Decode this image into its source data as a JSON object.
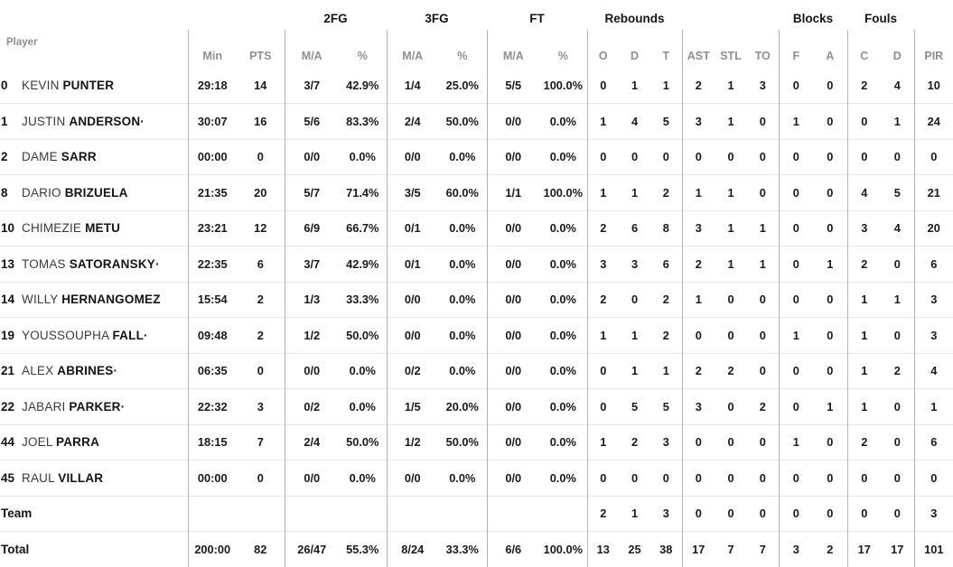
{
  "starter_marker": "·",
  "groups": {
    "fg2": "2FG",
    "fg3": "3FG",
    "ft": "FT",
    "rebounds": "Rebounds",
    "blocks": "Blocks",
    "fouls": "Fouls"
  },
  "header": {
    "player": "Player",
    "min": "Min",
    "pts": "PTS",
    "ma": "M/A",
    "pct": "%",
    "reb_o": "O",
    "reb_d": "D",
    "reb_t": "T",
    "ast": "AST",
    "stl": "STL",
    "to": "TO",
    "blk_f": "F",
    "blk_a": "A",
    "foul_c": "C",
    "foul_d": "D",
    "pir": "PIR"
  },
  "rows": [
    {
      "type": "player",
      "num": "0",
      "first": "KEVIN",
      "last": "PUNTER",
      "starter": false,
      "min": "29:18",
      "pts": "14",
      "fg2ma": "3/7",
      "fg2pct": "42.9%",
      "fg3ma": "1/4",
      "fg3pct": "25.0%",
      "ftma": "5/5",
      "ftpct": "100.0%",
      "ro": "0",
      "rd": "1",
      "rt": "1",
      "ast": "2",
      "stl": "1",
      "to": "3",
      "bf": "0",
      "ba": "0",
      "fc": "2",
      "fd": "4",
      "pir": "10"
    },
    {
      "type": "player",
      "num": "1",
      "first": "JUSTIN",
      "last": "ANDERSON",
      "starter": true,
      "min": "30:07",
      "pts": "16",
      "fg2ma": "5/6",
      "fg2pct": "83.3%",
      "fg3ma": "2/4",
      "fg3pct": "50.0%",
      "ftma": "0/0",
      "ftpct": "0.0%",
      "ro": "1",
      "rd": "4",
      "rt": "5",
      "ast": "3",
      "stl": "1",
      "to": "0",
      "bf": "1",
      "ba": "0",
      "fc": "0",
      "fd": "1",
      "pir": "24"
    },
    {
      "type": "player",
      "num": "2",
      "first": "DAME",
      "last": "SARR",
      "starter": false,
      "min": "00:00",
      "pts": "0",
      "fg2ma": "0/0",
      "fg2pct": "0.0%",
      "fg3ma": "0/0",
      "fg3pct": "0.0%",
      "ftma": "0/0",
      "ftpct": "0.0%",
      "ro": "0",
      "rd": "0",
      "rt": "0",
      "ast": "0",
      "stl": "0",
      "to": "0",
      "bf": "0",
      "ba": "0",
      "fc": "0",
      "fd": "0",
      "pir": "0"
    },
    {
      "type": "player",
      "num": "8",
      "first": "DARIO",
      "last": "BRIZUELA",
      "starter": false,
      "min": "21:35",
      "pts": "20",
      "fg2ma": "5/7",
      "fg2pct": "71.4%",
      "fg3ma": "3/5",
      "fg3pct": "60.0%",
      "ftma": "1/1",
      "ftpct": "100.0%",
      "ro": "1",
      "rd": "1",
      "rt": "2",
      "ast": "1",
      "stl": "1",
      "to": "0",
      "bf": "0",
      "ba": "0",
      "fc": "4",
      "fd": "5",
      "pir": "21"
    },
    {
      "type": "player",
      "num": "10",
      "first": "CHIMEZIE",
      "last": "METU",
      "starter": false,
      "min": "23:21",
      "pts": "12",
      "fg2ma": "6/9",
      "fg2pct": "66.7%",
      "fg3ma": "0/1",
      "fg3pct": "0.0%",
      "ftma": "0/0",
      "ftpct": "0.0%",
      "ro": "2",
      "rd": "6",
      "rt": "8",
      "ast": "3",
      "stl": "1",
      "to": "1",
      "bf": "0",
      "ba": "0",
      "fc": "3",
      "fd": "4",
      "pir": "20"
    },
    {
      "type": "player",
      "num": "13",
      "first": "TOMAS",
      "last": "SATORANSKY",
      "starter": true,
      "min": "22:35",
      "pts": "6",
      "fg2ma": "3/7",
      "fg2pct": "42.9%",
      "fg3ma": "0/1",
      "fg3pct": "0.0%",
      "ftma": "0/0",
      "ftpct": "0.0%",
      "ro": "3",
      "rd": "3",
      "rt": "6",
      "ast": "2",
      "stl": "1",
      "to": "1",
      "bf": "0",
      "ba": "1",
      "fc": "2",
      "fd": "0",
      "pir": "6"
    },
    {
      "type": "player",
      "num": "14",
      "first": "WILLY",
      "last": "HERNANGOMEZ",
      "starter": false,
      "min": "15:54",
      "pts": "2",
      "fg2ma": "1/3",
      "fg2pct": "33.3%",
      "fg3ma": "0/0",
      "fg3pct": "0.0%",
      "ftma": "0/0",
      "ftpct": "0.0%",
      "ro": "2",
      "rd": "0",
      "rt": "2",
      "ast": "1",
      "stl": "0",
      "to": "0",
      "bf": "0",
      "ba": "0",
      "fc": "1",
      "fd": "1",
      "pir": "3"
    },
    {
      "type": "player",
      "num": "19",
      "first": "YOUSSOUPHA",
      "last": "FALL",
      "starter": true,
      "min": "09:48",
      "pts": "2",
      "fg2ma": "1/2",
      "fg2pct": "50.0%",
      "fg3ma": "0/0",
      "fg3pct": "0.0%",
      "ftma": "0/0",
      "ftpct": "0.0%",
      "ro": "1",
      "rd": "1",
      "rt": "2",
      "ast": "0",
      "stl": "0",
      "to": "0",
      "bf": "1",
      "ba": "0",
      "fc": "1",
      "fd": "0",
      "pir": "3"
    },
    {
      "type": "player",
      "num": "21",
      "first": "ALEX",
      "last": "ABRINES",
      "starter": true,
      "min": "06:35",
      "pts": "0",
      "fg2ma": "0/0",
      "fg2pct": "0.0%",
      "fg3ma": "0/2",
      "fg3pct": "0.0%",
      "ftma": "0/0",
      "ftpct": "0.0%",
      "ro": "0",
      "rd": "1",
      "rt": "1",
      "ast": "2",
      "stl": "2",
      "to": "0",
      "bf": "0",
      "ba": "0",
      "fc": "1",
      "fd": "2",
      "pir": "4"
    },
    {
      "type": "player",
      "num": "22",
      "first": "JABARI",
      "last": "PARKER",
      "starter": true,
      "min": "22:32",
      "pts": "3",
      "fg2ma": "0/2",
      "fg2pct": "0.0%",
      "fg3ma": "1/5",
      "fg3pct": "20.0%",
      "ftma": "0/0",
      "ftpct": "0.0%",
      "ro": "0",
      "rd": "5",
      "rt": "5",
      "ast": "3",
      "stl": "0",
      "to": "2",
      "bf": "0",
      "ba": "1",
      "fc": "1",
      "fd": "0",
      "pir": "1"
    },
    {
      "type": "player",
      "num": "44",
      "first": "JOEL",
      "last": "PARRA",
      "starter": false,
      "min": "18:15",
      "pts": "7",
      "fg2ma": "2/4",
      "fg2pct": "50.0%",
      "fg3ma": "1/2",
      "fg3pct": "50.0%",
      "ftma": "0/0",
      "ftpct": "0.0%",
      "ro": "1",
      "rd": "2",
      "rt": "3",
      "ast": "0",
      "stl": "0",
      "to": "0",
      "bf": "1",
      "ba": "0",
      "fc": "2",
      "fd": "0",
      "pir": "6"
    },
    {
      "type": "player",
      "num": "45",
      "first": "RAUL",
      "last": "VILLAR",
      "starter": false,
      "min": "00:00",
      "pts": "0",
      "fg2ma": "0/0",
      "fg2pct": "0.0%",
      "fg3ma": "0/0",
      "fg3pct": "0.0%",
      "ftma": "0/0",
      "ftpct": "0.0%",
      "ro": "0",
      "rd": "0",
      "rt": "0",
      "ast": "0",
      "stl": "0",
      "to": "0",
      "bf": "0",
      "ba": "0",
      "fc": "0",
      "fd": "0",
      "pir": "0"
    },
    {
      "type": "team",
      "label": "Team",
      "min": "",
      "pts": "",
      "fg2ma": "",
      "fg2pct": "",
      "fg3ma": "",
      "fg3pct": "",
      "ftma": "",
      "ftpct": "",
      "ro": "2",
      "rd": "1",
      "rt": "3",
      "ast": "0",
      "stl": "0",
      "to": "0",
      "bf": "0",
      "ba": "0",
      "fc": "0",
      "fd": "0",
      "pir": "3"
    },
    {
      "type": "total",
      "label": "Total",
      "min": "200:00",
      "pts": "82",
      "fg2ma": "26/47",
      "fg2pct": "55.3%",
      "fg3ma": "8/24",
      "fg3pct": "33.3%",
      "ftma": "6/6",
      "ftpct": "100.0%",
      "ro": "13",
      "rd": "25",
      "rt": "38",
      "ast": "17",
      "stl": "7",
      "to": "7",
      "bf": "3",
      "ba": "2",
      "fc": "17",
      "fd": "17",
      "pir": "101"
    }
  ]
}
